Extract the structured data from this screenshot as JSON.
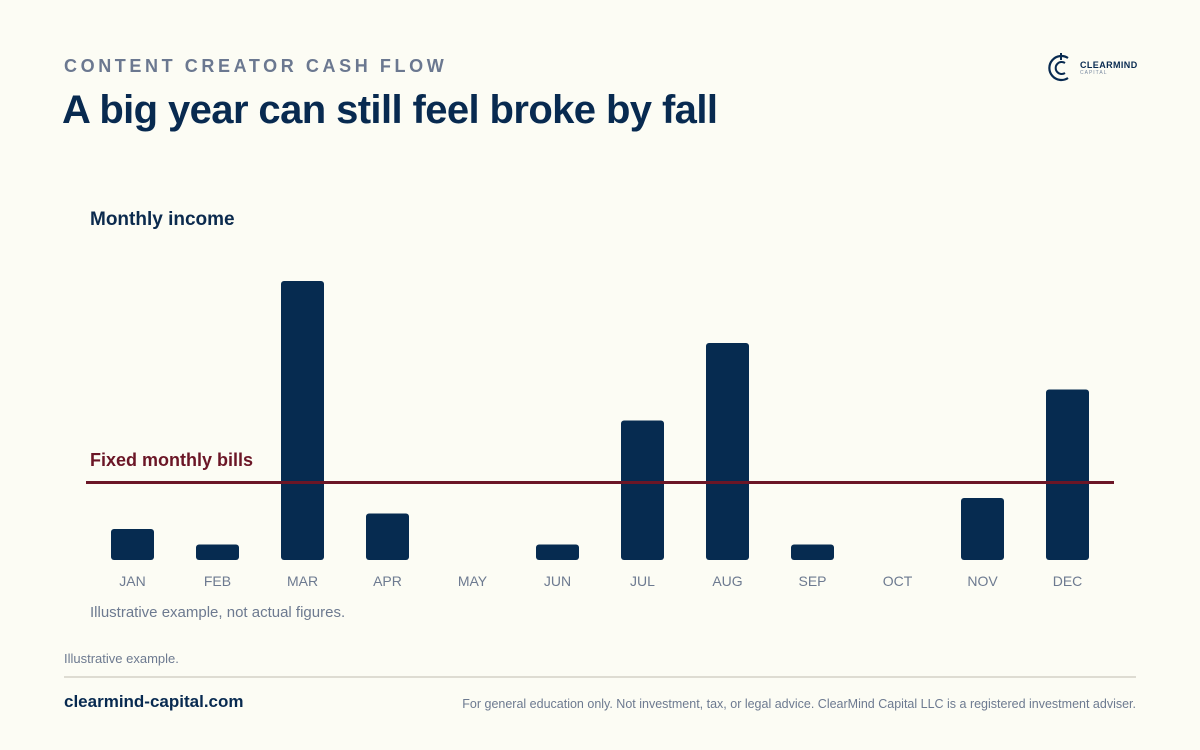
{
  "header": {
    "eyebrow": "CONTENT CREATOR CASH FLOW",
    "title": "A big year can still feel broke by fall"
  },
  "logo": {
    "name": "CLEARMIND",
    "sub": "CAPITAL"
  },
  "chart_data": {
    "type": "bar",
    "title": "Monthly income",
    "categories": [
      "JAN",
      "FEB",
      "MAR",
      "APR",
      "MAY",
      "JUN",
      "JUL",
      "AUG",
      "SEP",
      "OCT",
      "NOV",
      "DEC"
    ],
    "values": [
      2.0,
      1.0,
      18.0,
      3.0,
      0,
      1.0,
      9.0,
      14.0,
      1.0,
      0,
      4.0,
      11.0
    ],
    "reference_line": {
      "label": "Fixed monthly bills",
      "value": 5.0
    },
    "ylim": [
      0,
      18
    ],
    "grid": false,
    "note": "Illustrative example, not actual figures."
  },
  "colors": {
    "bar": "#062b50",
    "reference": "#6b1626",
    "background": "#fcfcf4"
  },
  "footer": {
    "footnote": "Illustrative example.",
    "url": "clearmind-capital.com",
    "disclaimer": "For general education only. Not investment, tax, or legal advice. ClearMind Capital LLC is a registered investment adviser."
  }
}
